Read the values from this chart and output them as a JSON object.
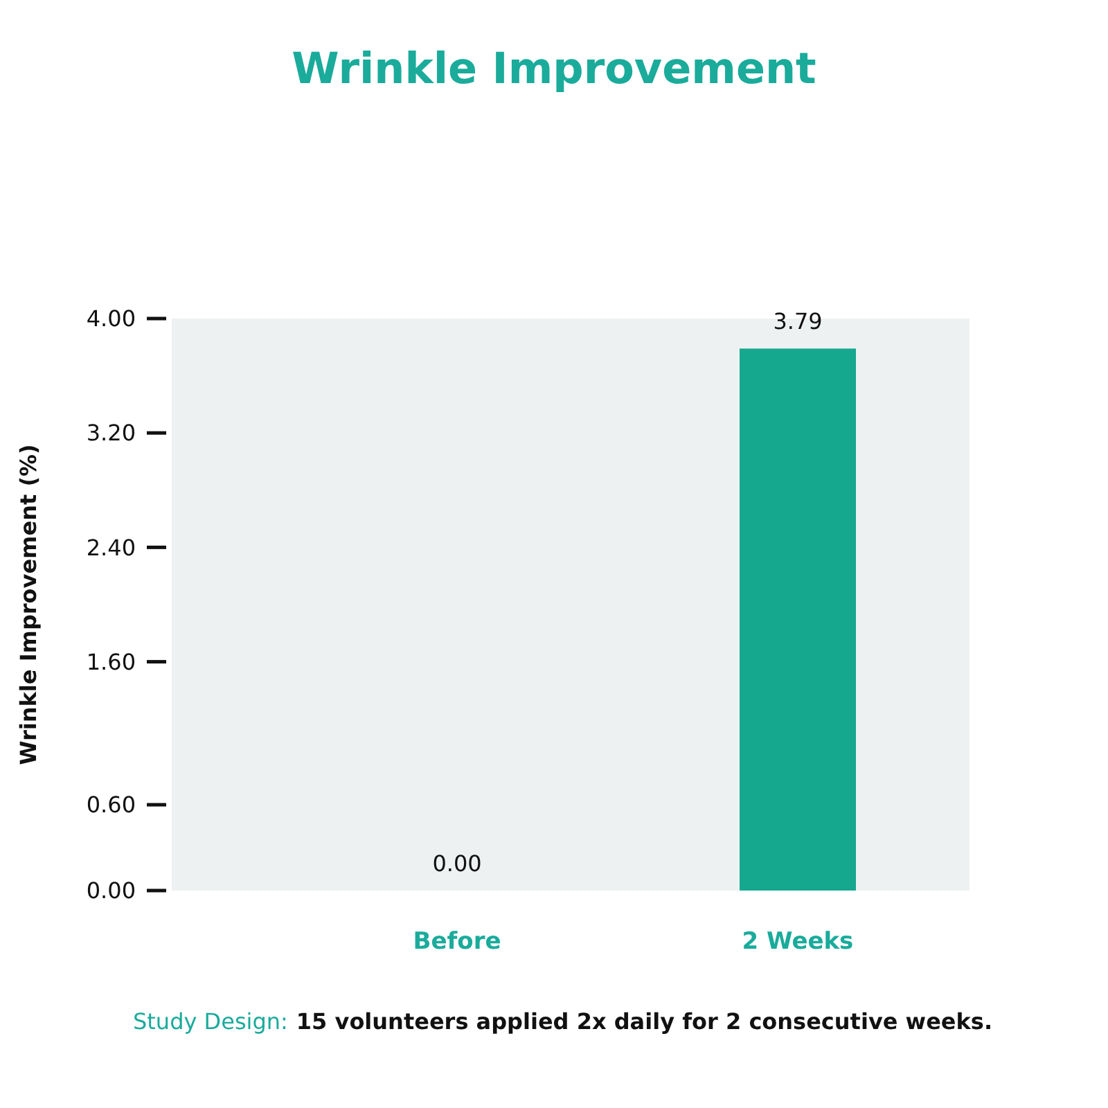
{
  "chart_data": {
    "type": "bar",
    "title": "Wrinkle Improvement",
    "ylabel": "Wrinkle Improvement (%)",
    "categories": [
      "Before",
      "2 Weeks"
    ],
    "values": [
      0,
      3.79
    ],
    "color": "#15a88f",
    "value_labels": [
      "0.00",
      "3.79"
    ],
    "ylim": [
      0,
      4
    ],
    "yticks": [
      {
        "value": 0,
        "label": "0.00"
      },
      {
        "value": 0.6,
        "label": "0.60"
      },
      {
        "value": 1.6,
        "label": "1.60"
      },
      {
        "value": 2.4,
        "label": "2.40"
      },
      {
        "value": 3.2,
        "label": "3.20"
      },
      {
        "value": 4,
        "label": "4.00"
      }
    ],
    "annotations": [
      "Study Design:",
      "15 volunteers applied 2x daily for 2 consecutive weeks."
    ]
  }
}
